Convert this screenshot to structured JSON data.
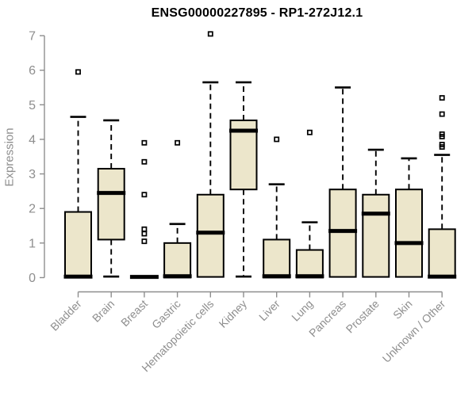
{
  "chart_data": {
    "type": "boxplot",
    "title": "ENSG00000227895 - RP1-272J12.1",
    "ylabel": "Expression",
    "xlabel": "",
    "ylim": [
      0,
      7
    ],
    "yticks": [
      0,
      1,
      2,
      3,
      4,
      5,
      6,
      7
    ],
    "grid": false,
    "legend": false,
    "categories": [
      "Bladder",
      "Brain",
      "Breast",
      "Gastric",
      "Hematopoietic cells",
      "Kidney",
      "Liver",
      "Lung",
      "Pancreas",
      "Prostate",
      "Skin",
      "Unknown / Other"
    ],
    "series": [
      {
        "name": "Bladder",
        "median": 0.03,
        "q1": 0.0,
        "q3": 1.9,
        "whisker_low": 0.0,
        "whisker_high": 4.65,
        "outliers": [
          5.95
        ]
      },
      {
        "name": "Brain",
        "median": 2.45,
        "q1": 1.1,
        "q3": 3.15,
        "whisker_low": 0.03,
        "whisker_high": 4.55,
        "outliers": []
      },
      {
        "name": "Breast",
        "median": 0.02,
        "q1": 0.0,
        "q3": 0.04,
        "whisker_low": 0.0,
        "whisker_high": 0.04,
        "outliers": [
          3.9,
          3.35,
          2.4,
          1.4,
          1.27,
          1.05
        ]
      },
      {
        "name": "Gastric",
        "median": 0.04,
        "q1": 0.0,
        "q3": 1.0,
        "whisker_low": 0.0,
        "whisker_high": 1.55,
        "outliers": [
          3.9
        ]
      },
      {
        "name": "Hematopoietic cells",
        "median": 1.3,
        "q1": 0.02,
        "q3": 2.4,
        "whisker_low": 0.0,
        "whisker_high": 5.65,
        "outliers": [
          7.05
        ]
      },
      {
        "name": "Kidney",
        "median": 4.25,
        "q1": 2.55,
        "q3": 4.55,
        "whisker_low": 0.03,
        "whisker_high": 5.65,
        "outliers": []
      },
      {
        "name": "Liver",
        "median": 0.04,
        "q1": 0.0,
        "q3": 1.1,
        "whisker_low": 0.0,
        "whisker_high": 2.7,
        "outliers": [
          4.0
        ]
      },
      {
        "name": "Lung",
        "median": 0.04,
        "q1": 0.0,
        "q3": 0.8,
        "whisker_low": 0.0,
        "whisker_high": 1.6,
        "outliers": [
          4.2
        ]
      },
      {
        "name": "Pancreas",
        "median": 1.35,
        "q1": 0.02,
        "q3": 2.55,
        "whisker_low": 0.0,
        "whisker_high": 5.5,
        "outliers": []
      },
      {
        "name": "Prostate",
        "median": 1.85,
        "q1": 0.02,
        "q3": 2.4,
        "whisker_low": 0.0,
        "whisker_high": 3.7,
        "outliers": []
      },
      {
        "name": "Skin",
        "median": 1.0,
        "q1": 0.02,
        "q3": 2.55,
        "whisker_low": 0.0,
        "whisker_high": 3.45,
        "outliers": []
      },
      {
        "name": "Unknown / Other",
        "median": 0.03,
        "q1": 0.0,
        "q3": 1.4,
        "whisker_low": 0.0,
        "whisker_high": 3.55,
        "outliers": [
          5.2,
          4.73,
          4.15,
          4.08,
          3.85,
          3.78
        ]
      }
    ],
    "colors": {
      "box_fill": "#ece6cb",
      "box_border": "#000000",
      "median": "#000000",
      "whisker": "#000000",
      "axis": "#8e8e8e",
      "tick_text": "#8e8e8e",
      "title_text": "#000000",
      "background": "#ffffff"
    }
  }
}
